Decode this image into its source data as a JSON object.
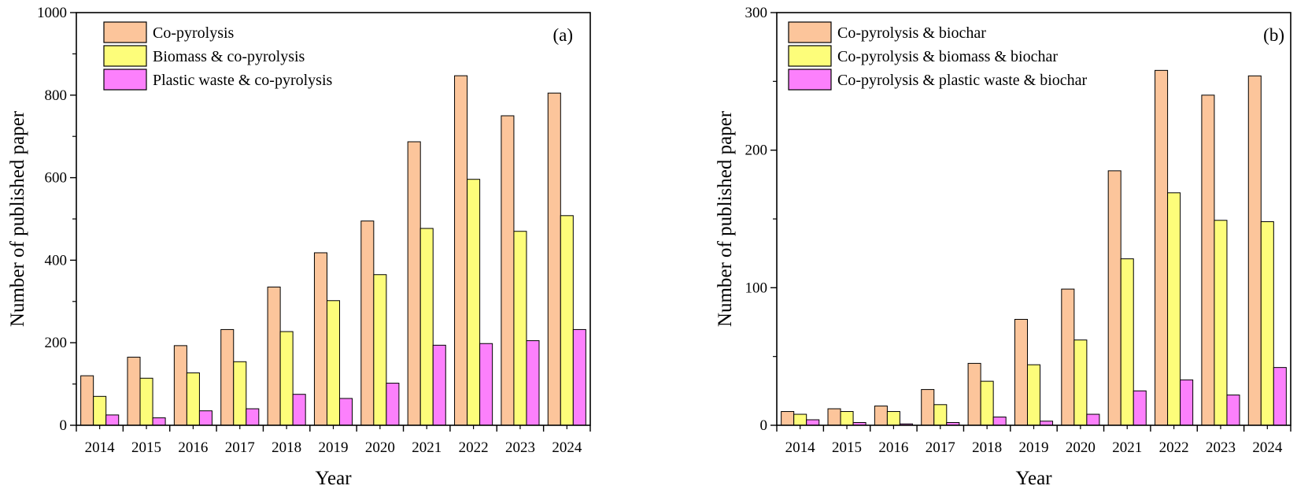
{
  "colors": {
    "series1": "#fcc59b",
    "series2": "#fdfd7a",
    "series3": "#fc80fc",
    "stroke": "#000000"
  },
  "chart_data": [
    {
      "type": "bar",
      "panel_label": "(a)",
      "xlabel": "Year",
      "ylabel": "Number of published paper",
      "ylim": [
        0,
        1000
      ],
      "yticks": [
        0,
        200,
        400,
        600,
        800,
        1000
      ],
      "grid": false,
      "legend_position": "top-left",
      "categories": [
        "2014",
        "2015",
        "2016",
        "2017",
        "2018",
        "2019",
        "2020",
        "2021",
        "2022",
        "2023",
        "2024"
      ],
      "series": [
        {
          "name": "Co-pyrolysis",
          "values": [
            120,
            165,
            193,
            232,
            335,
            418,
            495,
            687,
            847,
            750,
            805
          ]
        },
        {
          "name": "Biomass & co-pyrolysis",
          "values": [
            70,
            114,
            127,
            154,
            227,
            302,
            365,
            477,
            596,
            470,
            508
          ]
        },
        {
          "name": "Plastic waste & co-pyrolysis",
          "values": [
            25,
            18,
            35,
            40,
            75,
            65,
            102,
            194,
            198,
            205,
            232
          ]
        }
      ]
    },
    {
      "type": "bar",
      "panel_label": "(b)",
      "xlabel": "Year",
      "ylabel": "Number of published paper",
      "ylim": [
        0,
        300
      ],
      "yticks": [
        0,
        100,
        200,
        300
      ],
      "grid": false,
      "legend_position": "top-left",
      "categories": [
        "2014",
        "2015",
        "2016",
        "2017",
        "2018",
        "2019",
        "2020",
        "2021",
        "2022",
        "2023",
        "2024"
      ],
      "series": [
        {
          "name": "Co-pyrolysis & biochar",
          "values": [
            10,
            12,
            14,
            26,
            45,
            77,
            99,
            185,
            258,
            240,
            254
          ]
        },
        {
          "name": "Co-pyrolysis & biomass & biochar",
          "values": [
            8,
            10,
            10,
            15,
            32,
            44,
            62,
            121,
            169,
            149,
            148
          ]
        },
        {
          "name": "Co-pyrolysis & plastic waste & biochar",
          "values": [
            4,
            2,
            1,
            2,
            6,
            3,
            8,
            25,
            33,
            22,
            42
          ]
        }
      ]
    }
  ]
}
